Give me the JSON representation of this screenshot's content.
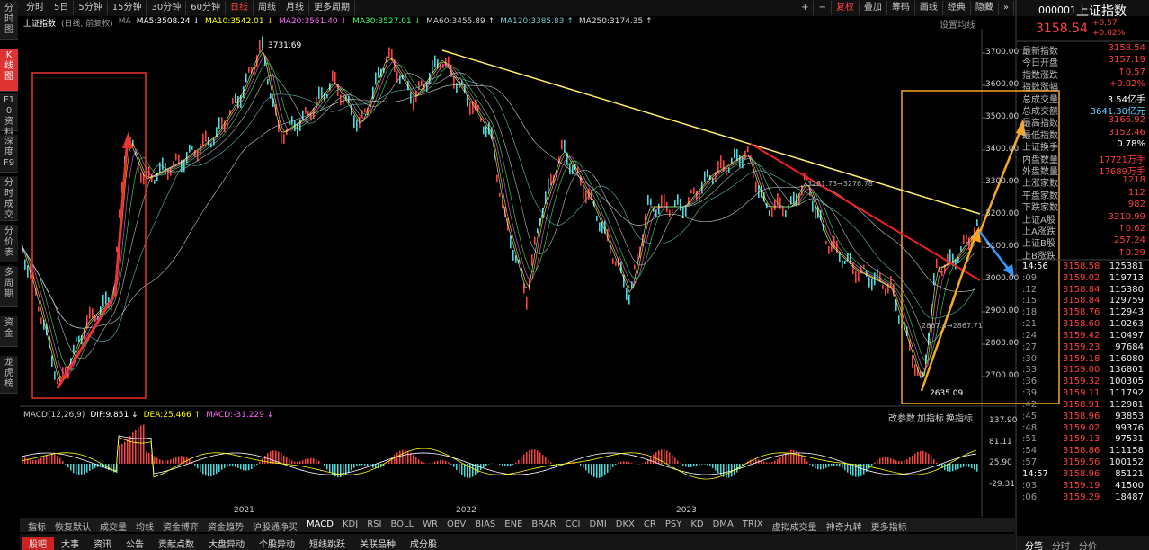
{
  "nav": [
    "分时图",
    "K线图",
    "F10资料",
    "深度F9",
    "分时成交",
    "分价表",
    "多周期",
    "资金",
    "龙虎榜"
  ],
  "toolbar": {
    "periods": [
      "分时",
      "5日",
      "5分钟",
      "15分钟",
      "30分钟",
      "60分钟",
      "日线",
      "周线",
      "月线",
      "更多周期"
    ],
    "tools": [
      "+",
      "−",
      "复权",
      "叠加",
      "筹码",
      "画线",
      "经典",
      "隐藏",
      "»"
    ]
  },
  "infobar": {
    "name": "上证指数",
    "mode": "(日线, 前复权)",
    "ma_label": "MA",
    "mas": [
      {
        "label": "MA5:3508.24 ↓",
        "color": "#ffffff"
      },
      {
        "label": "MA10:3542.01 ↓",
        "color": "#ffff00"
      },
      {
        "label": "MA20:3561.40 ↓",
        "color": "#ff66ff"
      },
      {
        "label": "MA30:3527.01 ↓",
        "color": "#33ff66"
      },
      {
        "label": "MA60:3455.89 ↑",
        "color": "#cccccc"
      },
      {
        "label": "MA120:3385.83 ↑",
        "color": "#66cccc"
      },
      {
        "label": "MA250:3174.35 ↑",
        "color": "#dddddd"
      }
    ],
    "settings": "设置均线"
  },
  "price_axis": [
    "3700.00",
    "3600.00",
    "3500.00",
    "3400.00",
    "3300.00",
    "3200.00",
    "3100.00",
    "3000.00",
    "2900.00",
    "2800.00",
    "2700.00"
  ],
  "annotations": {
    "high": "3731.69",
    "low": "2635.09",
    "mid1": "3281.73→3276.78",
    "mid2": "2867.4→2867.71"
  },
  "macd": {
    "name": "MACD(12,26,9)",
    "dif": "DIF:9.851 ↓",
    "dea": "DEA:25.466 ↑",
    "macd": "MACD:-31.229 ↓",
    "actions": [
      "改参数",
      "加指标",
      "换指标"
    ],
    "axis": [
      "137.90",
      "81.11",
      "25.90",
      "-29.31"
    ]
  },
  "years": [
    "2021",
    "2022",
    "2023"
  ],
  "indicators": [
    "指标",
    "恢复默认",
    "成交量",
    "均线",
    "资金博弈",
    "资金趋势",
    "沪股通净买",
    "MACD",
    "KDJ",
    "RSI",
    "BOLL",
    "WR",
    "OBV",
    "BIAS",
    "ENE",
    "BRAR",
    "CCI",
    "DMI",
    "DKX",
    "CR",
    "PSY",
    "KD",
    "DMA",
    "TRIX",
    "虚拟成交量",
    "神奇九转",
    "更多指标"
  ],
  "bottom_tabs": [
    "股吧",
    "大事",
    "资讯",
    "公告",
    "贡献点数",
    "大盘异动",
    "个股异动",
    "短线跳跃",
    "关联品种",
    "成分股"
  ],
  "quote": {
    "code": "000001",
    "name": "上证指数",
    "price": "3158.54",
    "change": "+0.57",
    "pct": "+0.02%",
    "rows": [
      [
        "最新指数",
        "3158.54"
      ],
      [
        "今日开盘",
        "3157.19"
      ],
      [
        "指数涨跌",
        "↑0.57"
      ],
      [
        "指数涨幅",
        "+0.02%"
      ],
      [
        "总成交量",
        "3.54亿手"
      ],
      [
        "总成交额",
        "3641.30亿元"
      ],
      [
        "最高指数",
        "3166.92"
      ],
      [
        "最低指数",
        "3152.46"
      ],
      [
        "上证换手",
        "0.78%"
      ],
      [
        "内盘数量",
        "17721万手"
      ],
      [
        "外盘数量",
        "17689万手"
      ],
      [
        "上涨家数",
        "1218"
      ],
      [
        "平盘家数",
        "112"
      ],
      [
        "下跌家数",
        "982"
      ],
      [
        "上证A股",
        "3310.99"
      ],
      [
        "上A涨跌",
        "↑0.62"
      ],
      [
        "上证B股",
        "257.24"
      ],
      [
        "上B涨跌",
        "↑0.29"
      ]
    ]
  },
  "ticks": [
    [
      "14:56",
      "3158.58",
      "125381"
    ],
    [
      ":09",
      "3159.02",
      "119713"
    ],
    [
      ":12",
      "3158.84",
      "115380"
    ],
    [
      ":15",
      "3158.84",
      "129759"
    ],
    [
      ":18",
      "3158.76",
      "112943"
    ],
    [
      ":21",
      "3158.60",
      "110263"
    ],
    [
      ":24",
      "3159.42",
      "110497"
    ],
    [
      ":27",
      "3159.23",
      "97684"
    ],
    [
      ":30",
      "3159.18",
      "116080"
    ],
    [
      ":33",
      "3159.00",
      "136801"
    ],
    [
      ":36",
      "3159.32",
      "100305"
    ],
    [
      ":39",
      "3159.11",
      "111792"
    ],
    [
      ":42",
      "3158.91",
      "112981"
    ],
    [
      ":45",
      "3158.96",
      "93853"
    ],
    [
      ":48",
      "3159.02",
      "99376"
    ],
    [
      ":51",
      "3159.13",
      "97531"
    ],
    [
      ":54",
      "3158.86",
      "111158"
    ],
    [
      ":57",
      "3159.56",
      "100152"
    ],
    [
      "14:57",
      "3158.96",
      "85121"
    ],
    [
      ":03",
      "3159.19",
      "41500"
    ],
    [
      ":06",
      "3159.29",
      "18487"
    ]
  ],
  "right_tabs": [
    "分笔",
    "分时",
    "分价"
  ]
}
